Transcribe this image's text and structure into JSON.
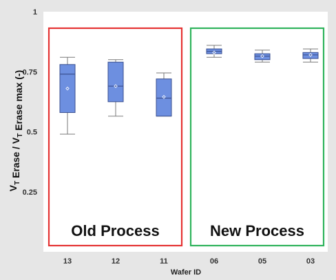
{
  "chart_data": {
    "type": "boxplot",
    "xlabel": "Wafer ID",
    "ylabel": {
      "parts": [
        {
          "text": "V",
          "sub": false
        },
        {
          "text": "T",
          "sub": true
        },
        {
          "text": " Erase / V",
          "sub": false
        },
        {
          "text": "T",
          "sub": true
        },
        {
          "text": " Erase max (-)",
          "sub": false
        }
      ]
    },
    "ylim": [
      0,
      1
    ],
    "yticks": [
      {
        "value": 0.25,
        "label": "0.25"
      },
      {
        "value": 0.5,
        "label": "0.5"
      },
      {
        "value": 0.75,
        "label": "0.75"
      },
      {
        "value": 1,
        "label": "1"
      }
    ],
    "categories": [
      "13",
      "12",
      "11",
      "06",
      "05",
      "03"
    ],
    "boxes": [
      {
        "wafer": "13",
        "min": 0.49,
        "q1": 0.58,
        "median": 0.74,
        "q3": 0.78,
        "max": 0.81,
        "mean": 0.68
      },
      {
        "wafer": "12",
        "min": 0.565,
        "q1": 0.625,
        "median": 0.69,
        "q3": 0.79,
        "max": 0.8,
        "mean": 0.69
      },
      {
        "wafer": "11",
        "min": 0.565,
        "q1": 0.565,
        "median": 0.64,
        "q3": 0.72,
        "max": 0.745,
        "mean": 0.645
      },
      {
        "wafer": "06",
        "min": 0.81,
        "q1": 0.825,
        "median": 0.835,
        "q3": 0.845,
        "max": 0.86,
        "mean": 0.83
      },
      {
        "wafer": "05",
        "min": 0.79,
        "q1": 0.8,
        "median": 0.815,
        "q3": 0.825,
        "max": 0.84,
        "mean": 0.815
      },
      {
        "wafer": "03",
        "min": 0.79,
        "q1": 0.805,
        "median": 0.82,
        "q3": 0.83,
        "max": 0.845,
        "mean": 0.82
      }
    ],
    "groups": [
      {
        "label": "Old Process",
        "categories": [
          "13",
          "12",
          "11"
        ],
        "color": "#e53333"
      },
      {
        "label": "New Process",
        "categories": [
          "06",
          "05",
          "03"
        ],
        "color": "#2eb35c"
      }
    ],
    "colors": {
      "box_fill": "#6d8fe0",
      "box_stroke": "#3a4f8f",
      "whisker": "#7a7a7a",
      "plot_bg": "#ffffff",
      "figure_bg": "#e6e6e6"
    }
  }
}
